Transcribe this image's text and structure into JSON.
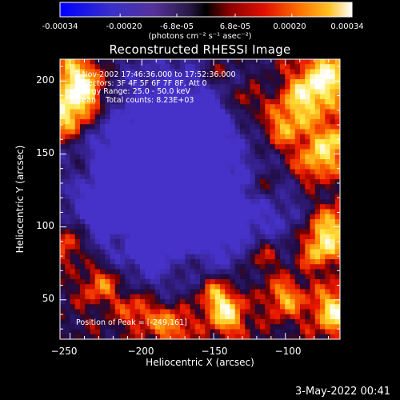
{
  "chart_data": {
    "type": "heatmap",
    "title": "Reconstructed RHESSI Image",
    "xlabel": "Heliocentric X (arcsec)",
    "ylabel": "Heliocentric Y (arcsec)",
    "xlim": [
      -257,
      -62
    ],
    "ylim": [
      23,
      215
    ],
    "x_ticks": [
      -250,
      -200,
      -150,
      -100
    ],
    "y_ticks": [
      50,
      100,
      150,
      200
    ],
    "x_tick_labels": [
      "−250",
      "−200",
      "−150",
      "−100"
    ],
    "y_tick_labels": [
      "50",
      "100",
      "150",
      "200"
    ],
    "colorbar": {
      "range": [
        -0.00034,
        0.00034
      ],
      "tick_values": [
        -0.00034,
        -0.0002,
        -6.8e-05,
        6.8e-05,
        0.0002,
        0.00034
      ],
      "tick_labels": [
        "-0.00034",
        "-0.00020",
        "-6.8e-05",
        "6.8e-05",
        "0.00020",
        "0.00034"
      ],
      "units": "(photons cm⁻² s⁻¹ asec⁻²)"
    },
    "annotations": [
      "7-Nov-2002 17:46:36.000 to 17:52:36.000",
      "Detectors: 3F 4F 5F 6F 7F 8F, Att 0",
      "Energy Range: 25.0 - 50.0 keV",
      "Clean    Total counts: 8.23E+03"
    ],
    "peak_label": "Position of Peak = [-249,161]",
    "peak_position": [
      -249,
      161
    ],
    "grid": false
  },
  "timestamp": "3-May-2022 00:41",
  "colors": {
    "background": "#000000",
    "text": "#ffffff",
    "negative": [
      "#0000ff",
      "#2828d8",
      "#4a3ab8",
      "#5a3498",
      "#3c2064",
      "#000000"
    ],
    "positive": [
      "#000000",
      "#a00000",
      "#e01a00",
      "#ff6a00",
      "#ffb000",
      "#ffffff"
    ]
  }
}
